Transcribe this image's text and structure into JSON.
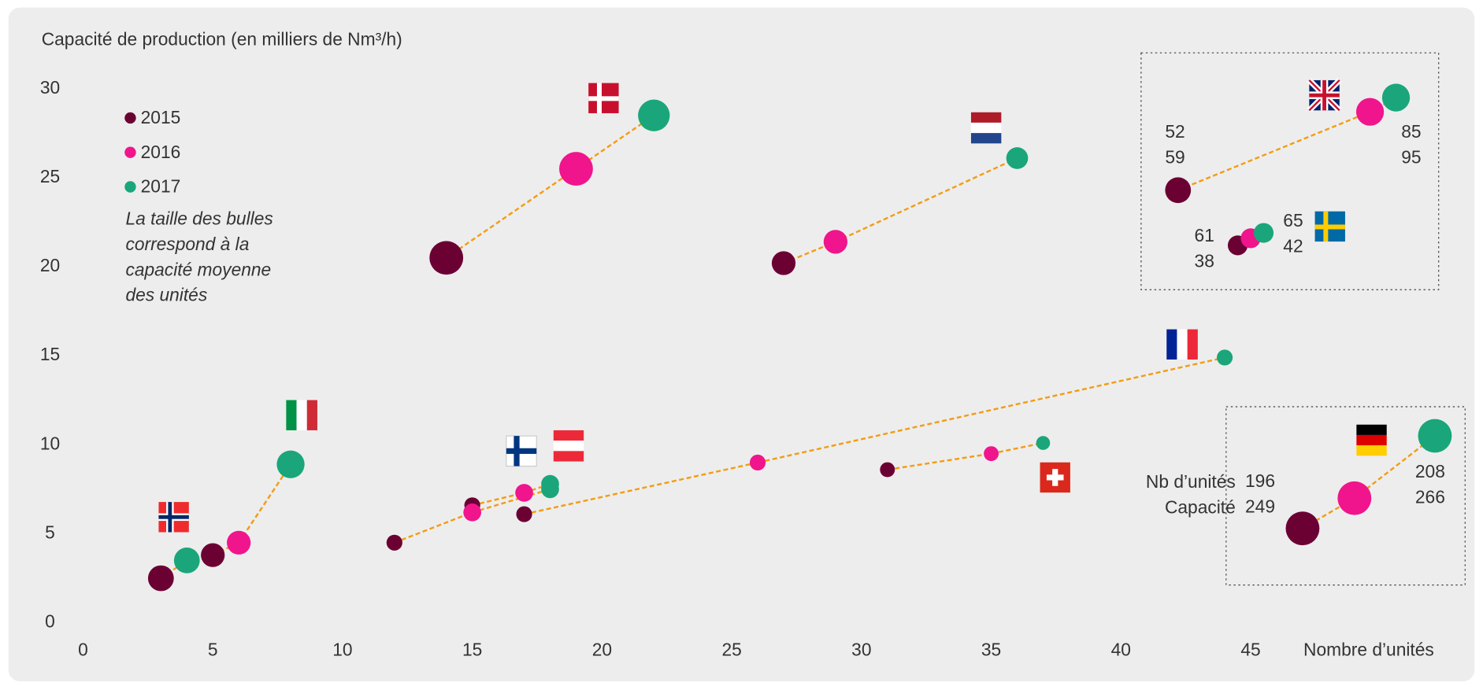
{
  "chart_data": {
    "type": "bubble",
    "y_axis_title": "Capacité de production (en milliers de Nm³/h)",
    "x_axis_title": "Nombre d’unités",
    "note": [
      "La taille des bulles",
      "correspond à la",
      "capacité moyenne",
      "des unités"
    ],
    "xlim": [
      0,
      52.9
    ],
    "xticks": [
      0,
      5,
      10,
      15,
      20,
      25,
      30,
      35,
      40,
      45
    ],
    "ylim": [
      0,
      30
    ],
    "yticks": [
      0,
      5,
      10,
      15,
      20,
      25,
      30
    ],
    "connector_color": "#f39c12",
    "series": [
      {
        "name": "2015",
        "color": "#6b0033",
        "x": [
          3,
          5,
          14,
          27,
          12,
          15,
          17,
          31,
          42.2,
          44.5,
          47.0
        ],
        "values": [
          2.5,
          3.8,
          20.5,
          20.2,
          4.5,
          6.6,
          6.1,
          8.6,
          24.3,
          21.2,
          5.3
        ],
        "sizes": [
          13,
          12,
          17,
          12,
          8,
          8,
          8,
          7.5,
          13,
          10,
          17
        ]
      },
      {
        "name": "2016",
        "color": "#f0158c",
        "x": [
          null,
          6,
          19,
          29,
          15,
          17,
          26,
          35,
          49.6,
          45.0,
          49.0
        ],
        "values": [
          null,
          4.5,
          25.5,
          21.4,
          6.2,
          7.3,
          9.0,
          9.5,
          28.7,
          21.6,
          7.0
        ],
        "sizes": [
          null,
          12,
          17,
          12,
          9,
          9,
          8,
          7.5,
          14,
          10,
          17
        ]
      },
      {
        "name": "2017",
        "color": "#1aa67a",
        "x": [
          4,
          8,
          22,
          36,
          18,
          18,
          44,
          37,
          50.6,
          45.5,
          52.1
        ],
        "values": [
          3.5,
          8.9,
          28.5,
          26.1,
          7.5,
          7.8,
          14.9,
          10.1,
          29.5,
          21.9,
          10.5
        ],
        "sizes": [
          13,
          14,
          16,
          11,
          9,
          9,
          8,
          7,
          14,
          10,
          17
        ]
      }
    ],
    "annotation_labels": [
      "Nb d’unités",
      "Capacité"
    ],
    "annotations": [
      {
        "units": 52,
        "capacity": 59
      },
      {
        "units": 85,
        "capacity": 95
      },
      {
        "units": 61,
        "capacity": 38
      },
      {
        "units": 65,
        "capacity": 42
      },
      {
        "units": 196,
        "capacity": 249
      },
      {
        "units": 208,
        "capacity": 266
      }
    ]
  }
}
